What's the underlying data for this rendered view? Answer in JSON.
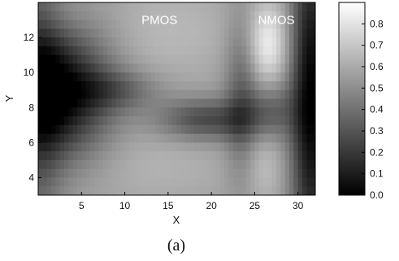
{
  "chart_data": {
    "type": "heatmap",
    "title": "",
    "xlabel": "X",
    "ylabel": "Y",
    "x_range": [
      0,
      32
    ],
    "y_range": [
      3,
      14
    ],
    "xticks": [
      5,
      10,
      15,
      20,
      25,
      30
    ],
    "yticks": [
      4,
      6,
      8,
      10,
      12
    ],
    "colormap": "gray",
    "colorbar": {
      "min": 0.0,
      "max": 0.9,
      "ticks": [
        0.0,
        0.1,
        0.2,
        0.3,
        0.4,
        0.5,
        0.6,
        0.7,
        0.8
      ]
    },
    "annotations": [
      {
        "text": "PMOS",
        "x": 14,
        "y": 13.0
      },
      {
        "text": "NMOS",
        "x": 27.5,
        "y": 13.0
      }
    ],
    "grid": false,
    "base_value": 0.55,
    "features": [
      {
        "name": "left-dark-well",
        "kind": "gauss",
        "cx": 2.5,
        "cy": 8.8,
        "sx": 4.2,
        "sy": 2.6,
        "amp": -0.55
      },
      {
        "name": "left-edge-dark",
        "kind": "gauss",
        "cx": 0.0,
        "cy": 9.0,
        "sx": 2.0,
        "sy": 6.0,
        "amp": -0.25
      },
      {
        "name": "left-corridor-dark",
        "kind": "gauss",
        "cx": 9.0,
        "cy": 9.0,
        "sx": 3.5,
        "sy": 0.8,
        "amp": -0.18
      },
      {
        "name": "left-top-light",
        "kind": "gauss",
        "cx": 2.0,
        "cy": 13.2,
        "sx": 2.5,
        "sy": 1.0,
        "amp": 0.05
      },
      {
        "name": "center-dark-band",
        "kind": "gauss",
        "cx": 19.5,
        "cy": 7.3,
        "sx": 4.0,
        "sy": 0.85,
        "amp": -0.32
      },
      {
        "name": "center-light-top",
        "kind": "gauss",
        "cx": 15.0,
        "cy": 12.3,
        "sx": 6.5,
        "sy": 2.2,
        "amp": 0.1
      },
      {
        "name": "center-light-bottom",
        "kind": "gauss",
        "cx": 13.0,
        "cy": 4.8,
        "sx": 8.5,
        "sy": 2.0,
        "amp": 0.08
      },
      {
        "name": "mid-right-dark-column",
        "kind": "gauss",
        "cx": 23.5,
        "cy": 8.5,
        "sx": 1.4,
        "sy": 3.4,
        "amp": -0.22
      },
      {
        "name": "nmos-bright-upper",
        "kind": "gauss",
        "cx": 26.5,
        "cy": 11.6,
        "sx": 1.6,
        "sy": 1.7,
        "amp": 0.27
      },
      {
        "name": "nmos-bright-lower",
        "kind": "gauss",
        "cx": 26.0,
        "cy": 4.8,
        "sx": 1.6,
        "sy": 1.8,
        "amp": 0.1
      },
      {
        "name": "nmos-dark-band",
        "kind": "gauss",
        "cx": 27.0,
        "cy": 7.8,
        "sx": 2.0,
        "sy": 1.2,
        "amp": -0.2
      },
      {
        "name": "right-dark-edge",
        "kind": "gauss",
        "cx": 31.5,
        "cy": 8.5,
        "sx": 1.6,
        "sy": 7.0,
        "amp": -0.55
      }
    ],
    "resolution": {
      "nx": 64,
      "ny": 22
    }
  },
  "caption": "(a)"
}
